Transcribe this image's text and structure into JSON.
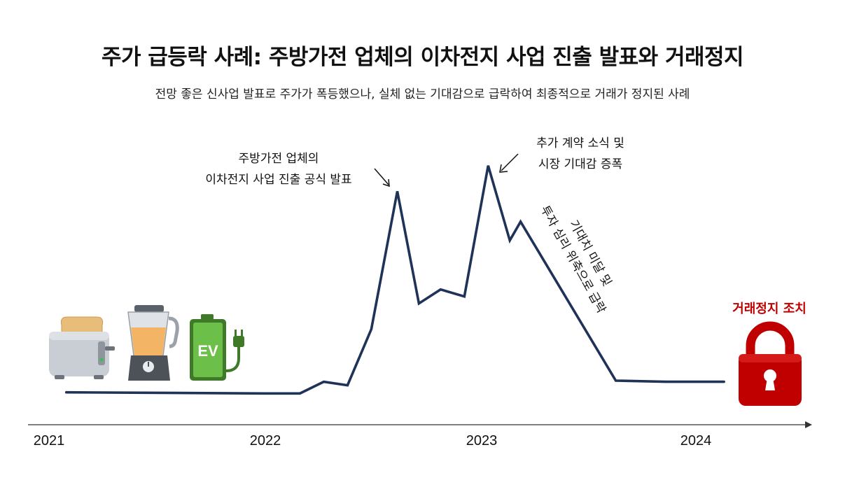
{
  "chart_data": {
    "type": "line",
    "title": "주가 급등락 사례: 주방가전 업체의 이차전지 사업 진출 발표와 거래정지",
    "subtitle": "전망 좋은 신사업 발표로 주가가 폭등했으나, 실체 없는 기대감으로 급락하여 최종적으로 거래가 정지된 사례",
    "xlabel": "",
    "ylabel": "",
    "x_ticks": [
      "2021",
      "2022",
      "2023",
      "2024"
    ],
    "xlim": [
      2021.0,
      2024.55
    ],
    "ylim": [
      0,
      100
    ],
    "grid": false,
    "x": [
      2021.08,
      2022.0,
      2022.16,
      2022.27,
      2022.38,
      2022.49,
      2022.61,
      2022.71,
      2022.81,
      2022.92,
      2023.03,
      2023.13,
      2023.18,
      2023.62,
      2023.85,
      2024.12
    ],
    "values": [
      1.0,
      0.5,
      0.5,
      5.5,
      4.0,
      28.0,
      87.0,
      39.0,
      45.0,
      42.0,
      98.0,
      66.0,
      74.0,
      6.0,
      5.5,
      5.5
    ],
    "annotations": [
      {
        "lines": [
          "주방가전 업체의",
          "이차전지 사업 진출 공식 발표"
        ]
      },
      {
        "lines": [
          "추가 계약 소식 및",
          "시장 기대감 증폭"
        ]
      },
      {
        "lines": [
          "기대치 미달 및",
          "투자 심리 위축으로 급락"
        ]
      },
      {
        "lines": [
          "거래정지 조치"
        ]
      }
    ],
    "icon_labels": {
      "ev_battery": "EV"
    },
    "colors": {
      "line": "#1f3257",
      "trading_halt": "#c00000",
      "axis": "#333333"
    }
  },
  "icons": [
    "toaster-icon",
    "blender-icon",
    "ev-battery-icon",
    "lock-icon"
  ]
}
